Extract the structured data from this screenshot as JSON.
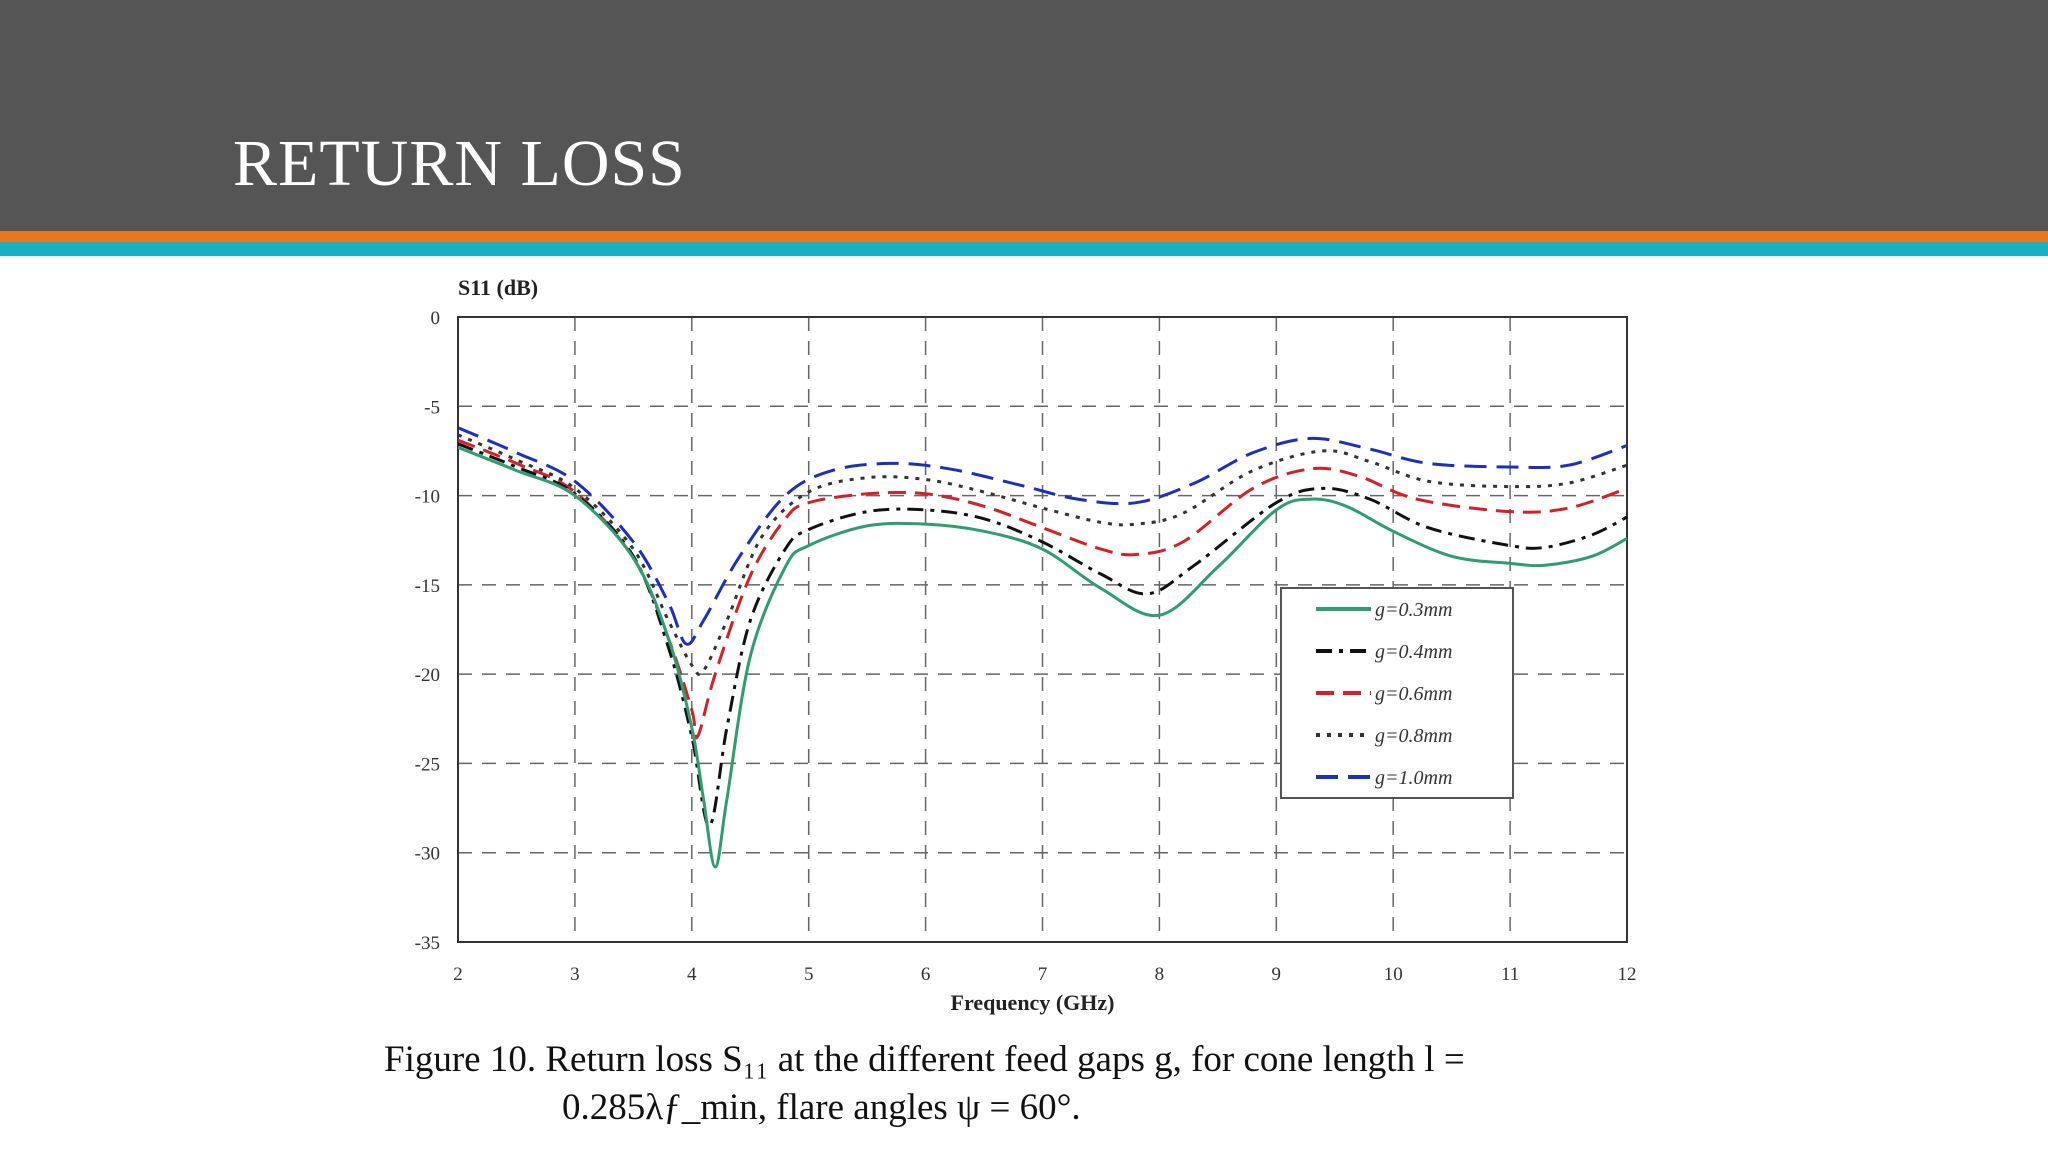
{
  "slide": {
    "title": "RETURN LOSS"
  },
  "colors": {
    "header_bg": "#555555",
    "stripe_orange": "#e87722",
    "stripe_teal": "#1ab0c2"
  },
  "caption": {
    "line1": "Figure 10. Return loss S₁₁ at the different feed gaps g, for cone length l =",
    "line2": "0.285λƒ_min, flare angles ψ = 60°."
  },
  "chart_data": {
    "type": "line",
    "ylabel": "S11 (dB)",
    "xlabel": "Frequency (GHz)",
    "xlim": [
      2,
      12
    ],
    "ylim": [
      -35,
      0
    ],
    "x_ticks": [
      "2",
      "3",
      "4",
      "5",
      "6",
      "7",
      "8",
      "9",
      "10",
      "11",
      "12"
    ],
    "y_ticks": [
      "0",
      "-5",
      "-10",
      "-15",
      "-20",
      "-25",
      "-30",
      "-35"
    ],
    "grid": true,
    "legend_position": "right",
    "series": [
      {
        "name": "g=0.3mm",
        "color": "#2e9e72",
        "dash": "solid",
        "points": [
          [
            2,
            -7.3
          ],
          [
            2.5,
            -8.6
          ],
          [
            3,
            -10.0
          ],
          [
            3.5,
            -13.5
          ],
          [
            3.8,
            -18.0
          ],
          [
            4.0,
            -23.0
          ],
          [
            4.1,
            -27.0
          ],
          [
            4.2,
            -30.8
          ],
          [
            4.3,
            -27.0
          ],
          [
            4.5,
            -19.0
          ],
          [
            4.8,
            -14.0
          ],
          [
            5.0,
            -12.8
          ],
          [
            5.5,
            -11.7
          ],
          [
            6.0,
            -11.6
          ],
          [
            6.5,
            -12.0
          ],
          [
            7.0,
            -13.0
          ],
          [
            7.5,
            -15.2
          ],
          [
            8.0,
            -16.7
          ],
          [
            8.5,
            -14.0
          ],
          [
            9.0,
            -10.8
          ],
          [
            9.3,
            -10.2
          ],
          [
            9.6,
            -10.6
          ],
          [
            10.0,
            -12.0
          ],
          [
            10.5,
            -13.4
          ],
          [
            11.0,
            -13.8
          ],
          [
            11.3,
            -13.9
          ],
          [
            11.7,
            -13.4
          ],
          [
            12.0,
            -12.4
          ]
        ]
      },
      {
        "name": "g=0.4mm",
        "color": "#111111",
        "dash": "dashdot",
        "points": [
          [
            2,
            -7.1
          ],
          [
            2.5,
            -8.4
          ],
          [
            3,
            -9.9
          ],
          [
            3.5,
            -13.4
          ],
          [
            3.8,
            -18.5
          ],
          [
            4.0,
            -23.5
          ],
          [
            4.15,
            -28.5
          ],
          [
            4.3,
            -23.0
          ],
          [
            4.5,
            -17.0
          ],
          [
            4.8,
            -13.0
          ],
          [
            5.0,
            -11.9
          ],
          [
            5.5,
            -10.9
          ],
          [
            6.0,
            -10.8
          ],
          [
            6.5,
            -11.3
          ],
          [
            7.0,
            -12.6
          ],
          [
            7.5,
            -14.4
          ],
          [
            7.9,
            -15.5
          ],
          [
            8.3,
            -13.9
          ],
          [
            9.0,
            -10.4
          ],
          [
            9.4,
            -9.6
          ],
          [
            9.8,
            -10.2
          ],
          [
            10.3,
            -11.8
          ],
          [
            11.0,
            -12.8
          ],
          [
            11.3,
            -12.9
          ],
          [
            11.7,
            -12.2
          ],
          [
            12.0,
            -11.2
          ]
        ]
      },
      {
        "name": "g=0.6mm",
        "color": "#d61f26",
        "dash": "dash",
        "points": [
          [
            2,
            -6.9
          ],
          [
            2.5,
            -8.2
          ],
          [
            3,
            -9.8
          ],
          [
            3.5,
            -13.5
          ],
          [
            3.8,
            -18.0
          ],
          [
            4.0,
            -22.0
          ],
          [
            4.05,
            -23.5
          ],
          [
            4.2,
            -20.0
          ],
          [
            4.5,
            -14.5
          ],
          [
            4.8,
            -11.3
          ],
          [
            5.0,
            -10.4
          ],
          [
            5.5,
            -9.9
          ],
          [
            6.0,
            -9.9
          ],
          [
            6.5,
            -10.6
          ],
          [
            7.0,
            -11.8
          ],
          [
            7.5,
            -13.0
          ],
          [
            7.8,
            -13.3
          ],
          [
            8.2,
            -12.6
          ],
          [
            8.8,
            -9.6
          ],
          [
            9.3,
            -8.5
          ],
          [
            9.7,
            -8.9
          ],
          [
            10.2,
            -10.2
          ],
          [
            11.0,
            -10.9
          ],
          [
            11.5,
            -10.7
          ],
          [
            12.0,
            -9.6
          ]
        ]
      },
      {
        "name": "g=0.8mm",
        "color": "#333333",
        "dash": "dot",
        "points": [
          [
            2,
            -6.6
          ],
          [
            2.5,
            -8.0
          ],
          [
            3,
            -9.6
          ],
          [
            3.5,
            -13.0
          ],
          [
            3.8,
            -17.0
          ],
          [
            4.0,
            -19.5
          ],
          [
            4.1,
            -19.8
          ],
          [
            4.3,
            -17.0
          ],
          [
            4.6,
            -12.3
          ],
          [
            5.0,
            -9.8
          ],
          [
            5.5,
            -9.0
          ],
          [
            6.0,
            -9.1
          ],
          [
            6.5,
            -9.8
          ],
          [
            7.0,
            -10.7
          ],
          [
            7.5,
            -11.5
          ],
          [
            7.8,
            -11.6
          ],
          [
            8.2,
            -11.0
          ],
          [
            8.8,
            -8.6
          ],
          [
            9.4,
            -7.5
          ],
          [
            9.8,
            -8.1
          ],
          [
            10.3,
            -9.2
          ],
          [
            11.0,
            -9.5
          ],
          [
            11.5,
            -9.3
          ],
          [
            12.0,
            -8.3
          ]
        ]
      },
      {
        "name": "g=1.0mm",
        "color": "#1c2fbf",
        "dash": "longdash",
        "points": [
          [
            2,
            -6.2
          ],
          [
            2.5,
            -7.6
          ],
          [
            3,
            -9.2
          ],
          [
            3.5,
            -12.6
          ],
          [
            3.8,
            -16.0
          ],
          [
            3.95,
            -18.3
          ],
          [
            4.1,
            -17.0
          ],
          [
            4.4,
            -13.5
          ],
          [
            4.8,
            -10.0
          ],
          [
            5.2,
            -8.6
          ],
          [
            5.7,
            -8.2
          ],
          [
            6.2,
            -8.5
          ],
          [
            6.8,
            -9.4
          ],
          [
            7.3,
            -10.2
          ],
          [
            7.8,
            -10.4
          ],
          [
            8.3,
            -9.3
          ],
          [
            8.8,
            -7.6
          ],
          [
            9.3,
            -6.8
          ],
          [
            9.8,
            -7.4
          ],
          [
            10.3,
            -8.2
          ],
          [
            11.0,
            -8.4
          ],
          [
            11.5,
            -8.3
          ],
          [
            12.0,
            -7.2
          ]
        ]
      }
    ]
  }
}
